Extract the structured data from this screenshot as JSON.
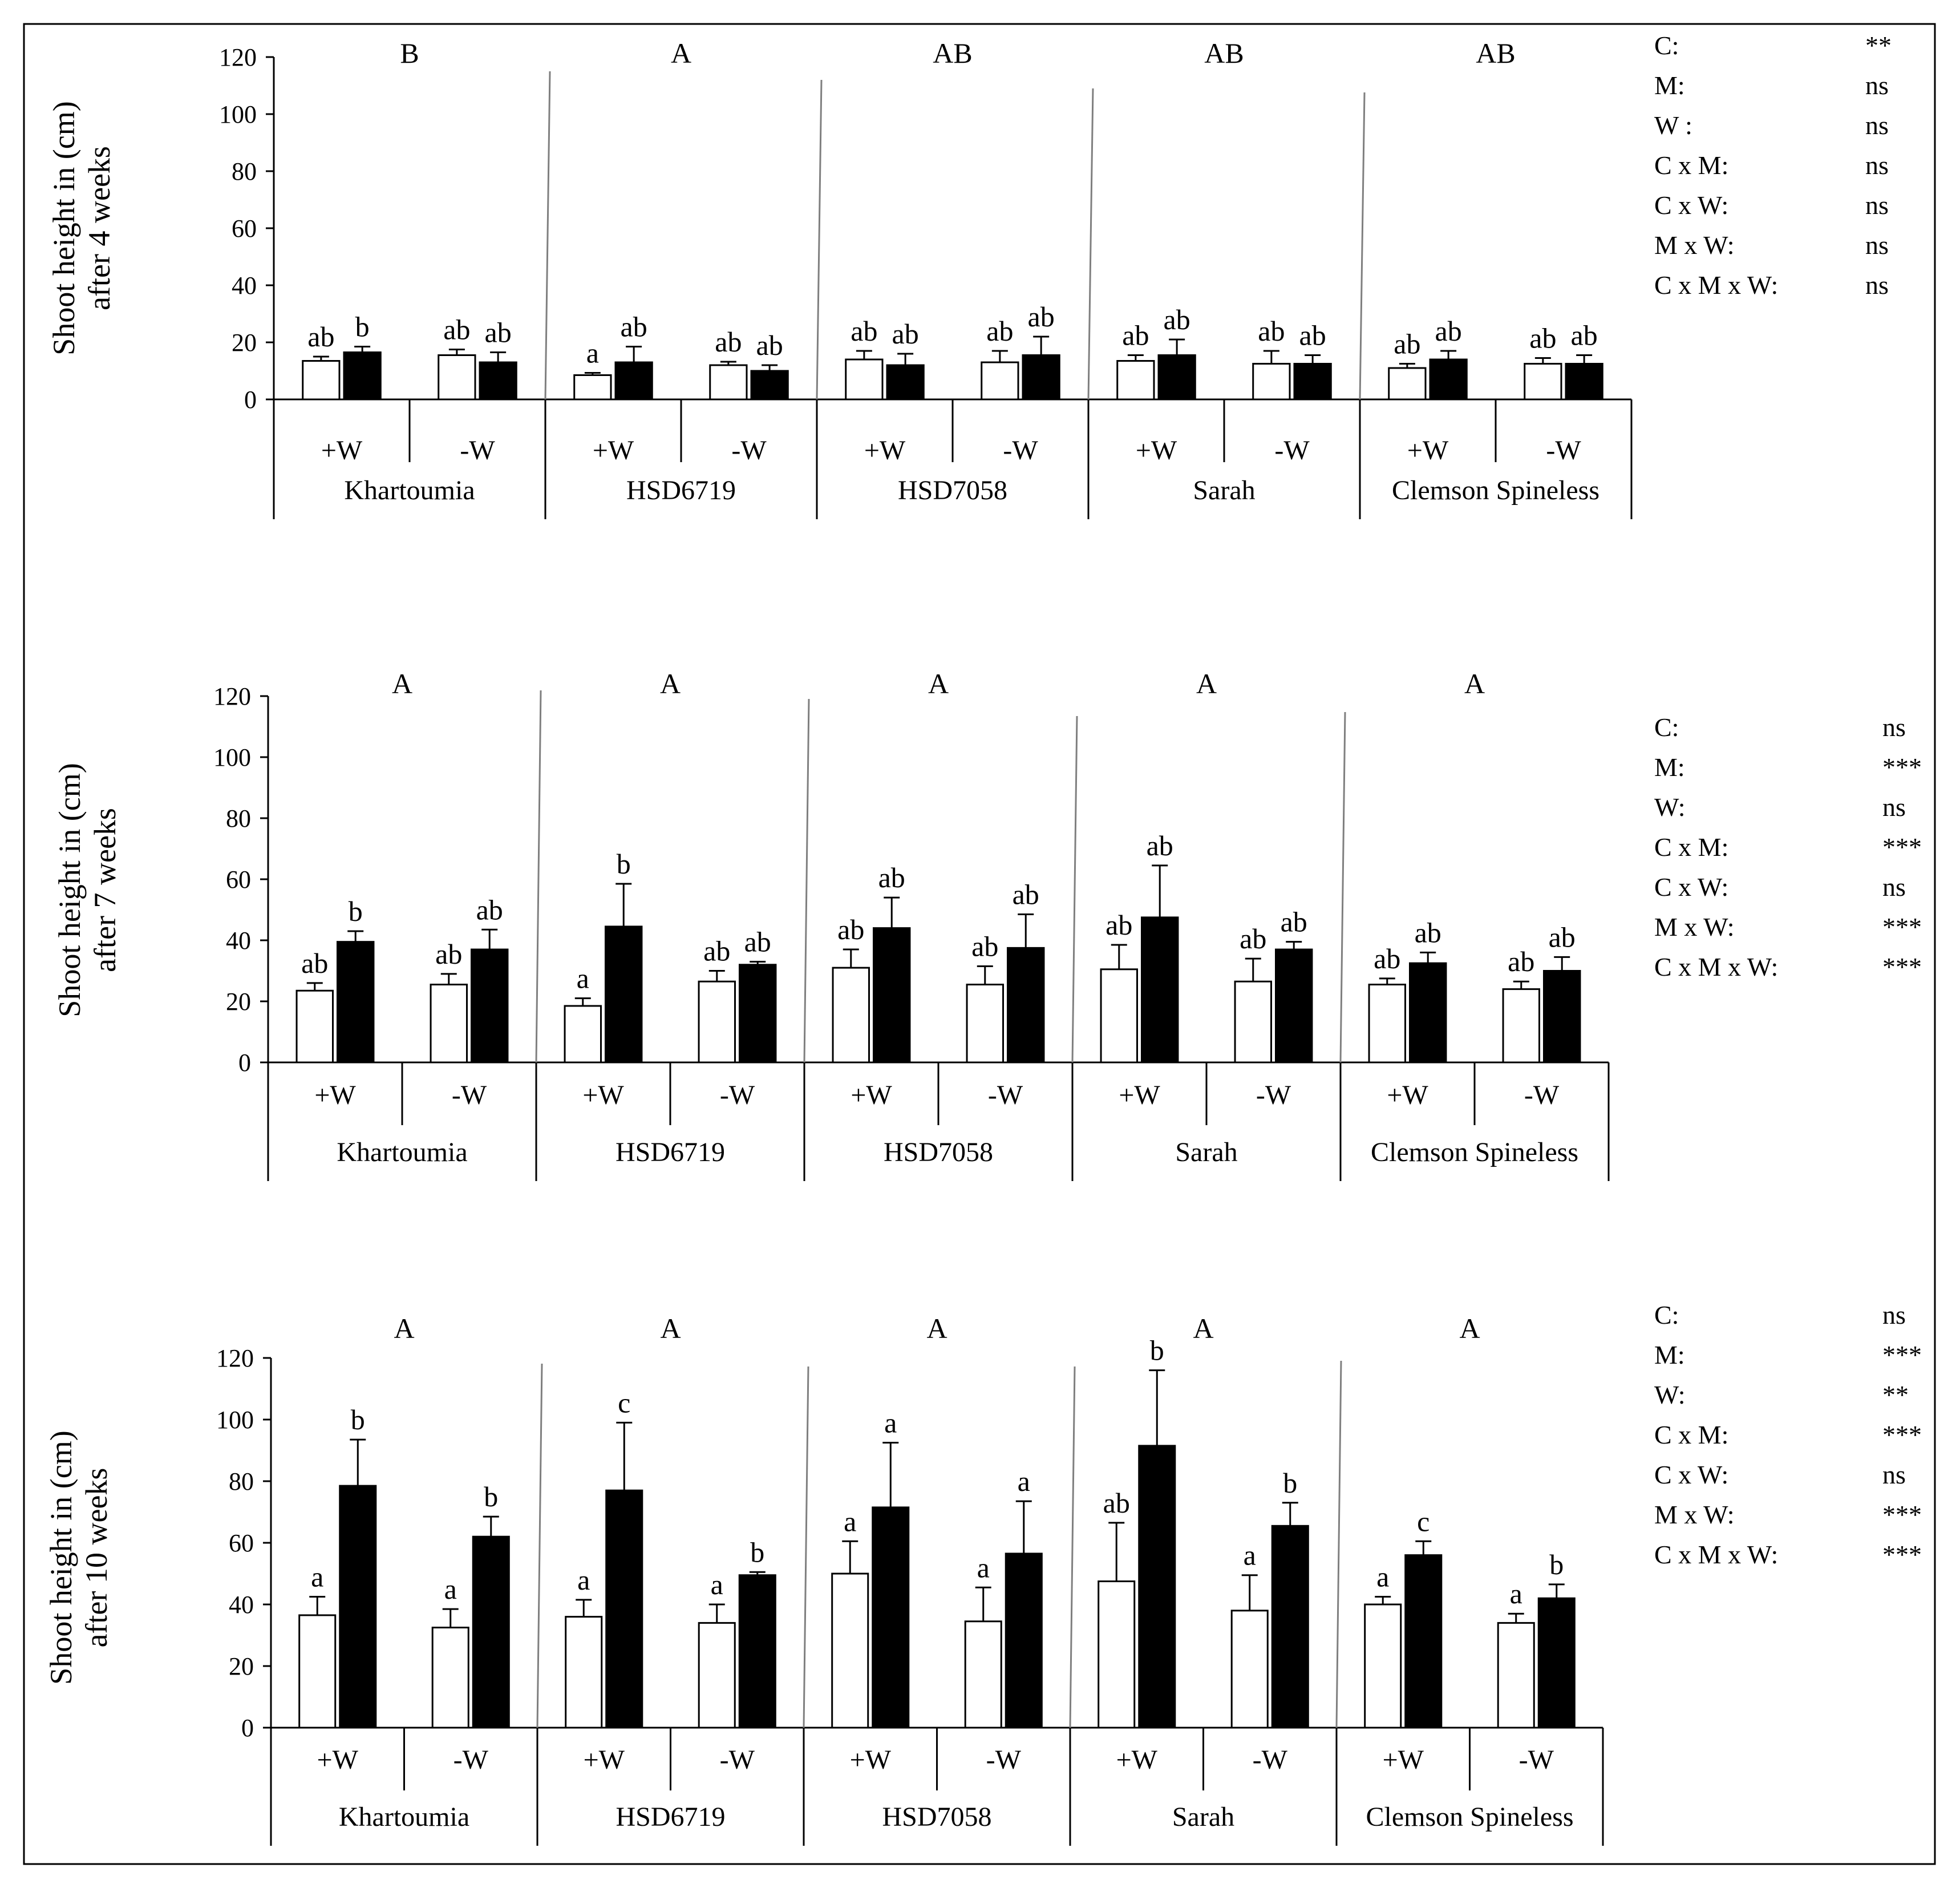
{
  "chart_data": [
    {
      "type": "bar",
      "ylabel": "Shoot height in (cm)",
      "ylabel2": "after 4 weeks",
      "ylim": [
        0,
        120
      ],
      "yticks": [
        "0",
        "20",
        "40",
        "60",
        "80",
        "100",
        "120"
      ],
      "cultivars": [
        {
          "name": "Khartoumia",
          "group_letter": "B",
          "treatments": [
            {
              "label": "+W",
              "open": {
                "value": 13.5,
                "err": 1.5,
                "letter": "ab"
              },
              "filled": {
                "value": 16.5,
                "err": 2.0,
                "letter": "b"
              }
            },
            {
              "label": "-W",
              "open": {
                "value": 15.5,
                "err": 2.0,
                "letter": "ab"
              },
              "filled": {
                "value": 13.0,
                "err": 3.5,
                "letter": "ab"
              }
            }
          ]
        },
        {
          "name": "HSD6719",
          "group_letter": "A",
          "treatments": [
            {
              "label": "+W",
              "open": {
                "value": 8.5,
                "err": 0.8,
                "letter": "a"
              },
              "filled": {
                "value": 13.0,
                "err": 5.5,
                "letter": "ab"
              }
            },
            {
              "label": "-W",
              "open": {
                "value": 12.0,
                "err": 1.2,
                "letter": "ab"
              },
              "filled": {
                "value": 10.0,
                "err": 2.0,
                "letter": "ab"
              }
            }
          ]
        },
        {
          "name": "HSD7058",
          "group_letter": "AB",
          "treatments": [
            {
              "label": "+W",
              "open": {
                "value": 14.0,
                "err": 3.0,
                "letter": "ab"
              },
              "filled": {
                "value": 12.0,
                "err": 4.0,
                "letter": "ab"
              }
            },
            {
              "label": "-W",
              "open": {
                "value": 13.0,
                "err": 4.0,
                "letter": "ab"
              },
              "filled": {
                "value": 15.5,
                "err": 6.5,
                "letter": "ab"
              }
            }
          ]
        },
        {
          "name": "Sarah",
          "group_letter": "AB",
          "treatments": [
            {
              "label": "+W",
              "open": {
                "value": 13.5,
                "err": 2.0,
                "letter": "ab"
              },
              "filled": {
                "value": 15.5,
                "err": 5.5,
                "letter": "ab"
              }
            },
            {
              "label": "-W",
              "open": {
                "value": 12.5,
                "err": 4.5,
                "letter": "ab"
              },
              "filled": {
                "value": 12.5,
                "err": 3.0,
                "letter": "ab"
              }
            }
          ]
        },
        {
          "name": "Clemson Spineless",
          "group_letter": "AB",
          "treatments": [
            {
              "label": "+W",
              "open": {
                "value": 11.0,
                "err": 1.5,
                "letter": "ab"
              },
              "filled": {
                "value": 14.0,
                "err": 3.0,
                "letter": "ab"
              }
            },
            {
              "label": "-W",
              "open": {
                "value": 12.5,
                "err": 2.0,
                "letter": "ab"
              },
              "filled": {
                "value": 12.5,
                "err": 3.0,
                "letter": "ab"
              }
            }
          ]
        }
      ],
      "anova": [
        {
          "term": "C:",
          "sig": "**"
        },
        {
          "term": "M:",
          "sig": "ns"
        },
        {
          "term": "W :",
          "sig": "ns"
        },
        {
          "term": "C x M:",
          "sig": "ns"
        },
        {
          "term": "C x W:",
          "sig": "ns"
        },
        {
          "term": "M x W:",
          "sig": "ns"
        },
        {
          "term": "C x M x W:",
          "sig": "ns"
        }
      ]
    },
    {
      "type": "bar",
      "ylabel": "Shoot height in (cm)",
      "ylabel2": "after 7 weeks",
      "ylim": [
        0,
        120
      ],
      "yticks": [
        "0",
        "20",
        "40",
        "60",
        "80",
        "100",
        "120"
      ],
      "cultivars": [
        {
          "name": "Khartoumia",
          "group_letter": "A",
          "treatments": [
            {
              "label": "+W",
              "open": {
                "value": 23.5,
                "err": 2.5,
                "letter": "ab"
              },
              "filled": {
                "value": 39.5,
                "err": 3.5,
                "letter": "b"
              }
            },
            {
              "label": "-W",
              "open": {
                "value": 25.5,
                "err": 3.5,
                "letter": "ab"
              },
              "filled": {
                "value": 37.0,
                "err": 6.5,
                "letter": "ab"
              }
            }
          ]
        },
        {
          "name": "HSD6719",
          "group_letter": "A",
          "treatments": [
            {
              "label": "+W",
              "open": {
                "value": 18.5,
                "err": 2.5,
                "letter": "a"
              },
              "filled": {
                "value": 44.5,
                "err": 14.0,
                "letter": "b"
              }
            },
            {
              "label": "-W",
              "open": {
                "value": 26.5,
                "err": 3.5,
                "letter": "ab"
              },
              "filled": {
                "value": 32.0,
                "err": 1.0,
                "letter": "ab"
              }
            }
          ]
        },
        {
          "name": "HSD7058",
          "group_letter": "A",
          "treatments": [
            {
              "label": "+W",
              "open": {
                "value": 31.0,
                "err": 6.0,
                "letter": "ab"
              },
              "filled": {
                "value": 44.0,
                "err": 10.0,
                "letter": "ab"
              }
            },
            {
              "label": "-W",
              "open": {
                "value": 25.5,
                "err": 6.0,
                "letter": "ab"
              },
              "filled": {
                "value": 37.5,
                "err": 11.0,
                "letter": "ab"
              }
            }
          ]
        },
        {
          "name": "Sarah",
          "group_letter": "A",
          "treatments": [
            {
              "label": "+W",
              "open": {
                "value": 30.5,
                "err": 8.0,
                "letter": "ab"
              },
              "filled": {
                "value": 47.5,
                "err": 17.0,
                "letter": "ab"
              }
            },
            {
              "label": "-W",
              "open": {
                "value": 26.5,
                "err": 7.5,
                "letter": "ab"
              },
              "filled": {
                "value": 37.0,
                "err": 2.5,
                "letter": "ab"
              }
            }
          ]
        },
        {
          "name": "Clemson Spineless",
          "group_letter": "A",
          "treatments": [
            {
              "label": "+W",
              "open": {
                "value": 25.5,
                "err": 2.0,
                "letter": "ab"
              },
              "filled": {
                "value": 32.5,
                "err": 3.5,
                "letter": "ab"
              }
            },
            {
              "label": "-W",
              "open": {
                "value": 24.0,
                "err": 2.5,
                "letter": "ab"
              },
              "filled": {
                "value": 30.0,
                "err": 4.5,
                "letter": "ab"
              }
            }
          ]
        }
      ],
      "anova": [
        {
          "term": "C:",
          "sig": "ns"
        },
        {
          "term": "M:",
          "sig": "***"
        },
        {
          "term": "W:",
          "sig": "ns"
        },
        {
          "term": "C x M:",
          "sig": "***"
        },
        {
          "term": "C x W:",
          "sig": "ns"
        },
        {
          "term": "M x W:",
          "sig": "***"
        },
        {
          "term": "C x M x W:",
          "sig": "***"
        }
      ]
    },
    {
      "type": "bar",
      "ylabel": "Shoot height in (cm)",
      "ylabel2": "after 10 weeks",
      "ylim": [
        0,
        120
      ],
      "yticks": [
        "0",
        "20",
        "40",
        "60",
        "80",
        "100",
        "120"
      ],
      "cultivars": [
        {
          "name": "Khartoumia",
          "group_letter": "A",
          "treatments": [
            {
              "label": "+W",
              "open": {
                "value": 36.5,
                "err": 6.0,
                "letter": "a"
              },
              "filled": {
                "value": 78.5,
                "err": 15.0,
                "letter": "b"
              }
            },
            {
              "label": "-W",
              "open": {
                "value": 32.5,
                "err": 6.0,
                "letter": "a"
              },
              "filled": {
                "value": 62.0,
                "err": 6.5,
                "letter": "b"
              }
            }
          ]
        },
        {
          "name": "HSD6719",
          "group_letter": "A",
          "treatments": [
            {
              "label": "+W",
              "open": {
                "value": 36.0,
                "err": 5.5,
                "letter": "a"
              },
              "filled": {
                "value": 77.0,
                "err": 22.0,
                "letter": "c"
              }
            },
            {
              "label": "-W",
              "open": {
                "value": 34.0,
                "err": 6.0,
                "letter": "a"
              },
              "filled": {
                "value": 49.5,
                "err": 1.0,
                "letter": "b"
              }
            }
          ]
        },
        {
          "name": "HSD7058",
          "group_letter": "A",
          "treatments": [
            {
              "label": "+W",
              "open": {
                "value": 50.0,
                "err": 10.5,
                "letter": "a"
              },
              "filled": {
                "value": 71.5,
                "err": 21.0,
                "letter": "a"
              }
            },
            {
              "label": "-W",
              "open": {
                "value": 34.5,
                "err": 11.0,
                "letter": "a"
              },
              "filled": {
                "value": 56.5,
                "err": 17.0,
                "letter": "a"
              }
            }
          ]
        },
        {
          "name": "Sarah",
          "group_letter": "A",
          "treatments": [
            {
              "label": "+W",
              "open": {
                "value": 47.5,
                "err": 19.0,
                "letter": "ab"
              },
              "filled": {
                "value": 91.5,
                "err": 24.5,
                "letter": "b"
              }
            },
            {
              "label": "-W",
              "open": {
                "value": 38.0,
                "err": 11.5,
                "letter": "a"
              },
              "filled": {
                "value": 65.5,
                "err": 7.5,
                "letter": "b"
              }
            }
          ]
        },
        {
          "name": "Clemson Spineless",
          "group_letter": "A",
          "treatments": [
            {
              "label": "+W",
              "open": {
                "value": 40.0,
                "err": 2.5,
                "letter": "a"
              },
              "filled": {
                "value": 56.0,
                "err": 4.5,
                "letter": "c"
              }
            },
            {
              "label": "-W",
              "open": {
                "value": 34.0,
                "err": 3.0,
                "letter": "a"
              },
              "filled": {
                "value": 42.0,
                "err": 4.5,
                "letter": "b"
              }
            }
          ]
        }
      ],
      "anova": [
        {
          "term": "C:",
          "sig": "ns"
        },
        {
          "term": "M:",
          "sig": "***"
        },
        {
          "term": "W:",
          "sig": "**"
        },
        {
          "term": "C x M:",
          "sig": "***"
        },
        {
          "term": "C x W:",
          "sig": "ns"
        },
        {
          "term": "M x W:",
          "sig": "***"
        },
        {
          "term": "C x M x W:",
          "sig": "***"
        }
      ]
    }
  ],
  "colors": {
    "open_bar": "#ffffff",
    "filled_bar": "#000000",
    "axis": "#000000",
    "divider": "#7f7f7f",
    "frame": "#000000"
  }
}
